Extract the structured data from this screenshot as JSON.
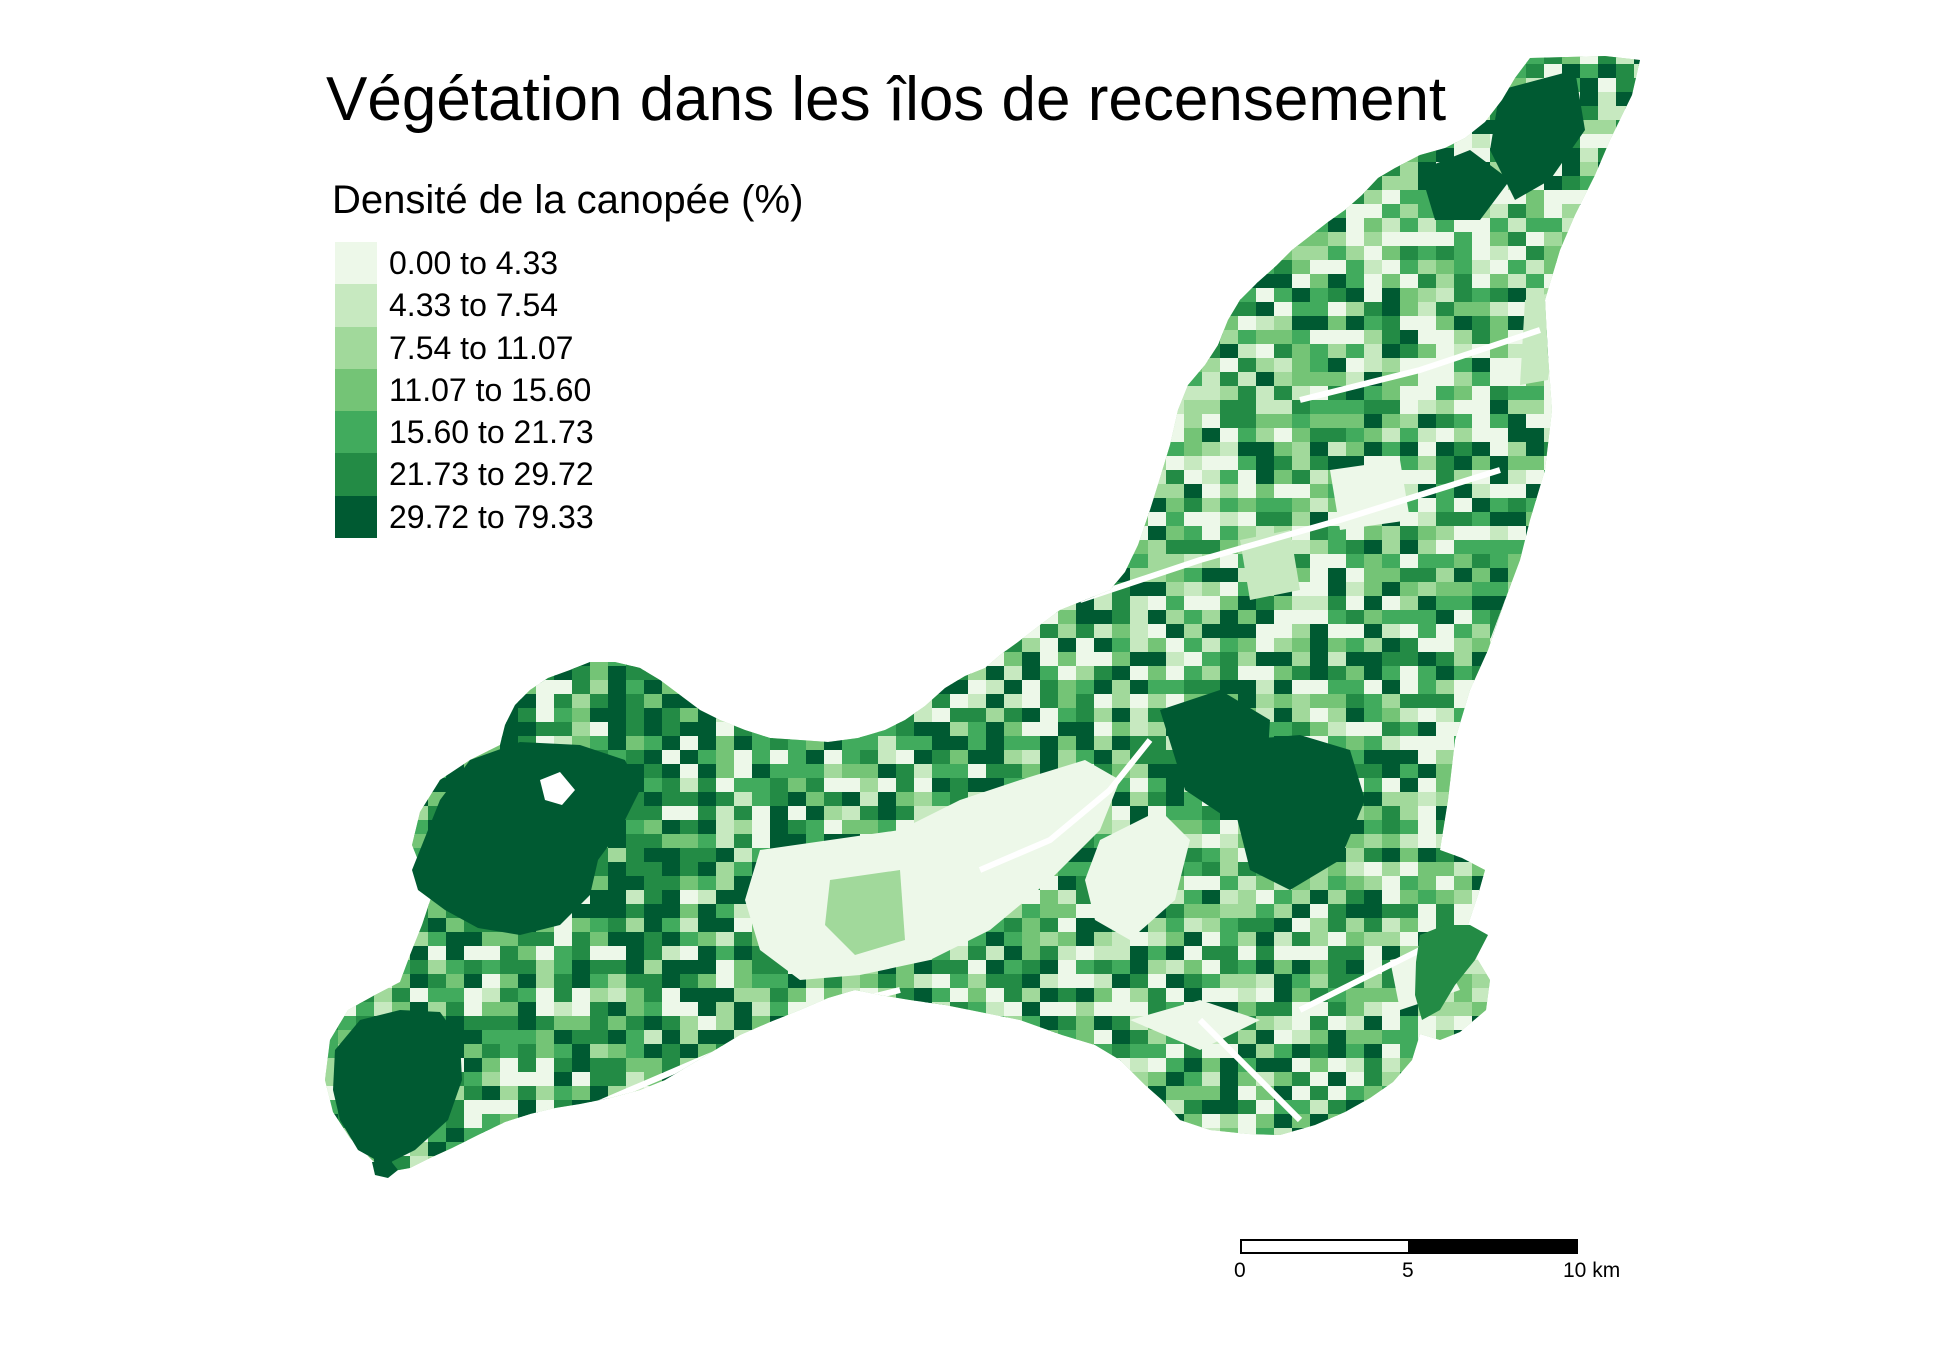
{
  "title": "Végétation dans les îlos de recensement",
  "legend": {
    "title": "Densité de la canopée (%)",
    "classes": [
      {
        "label": "0.00 to 4.33",
        "color": "#edf8e9"
      },
      {
        "label": "4.33 to 7.54",
        "color": "#c7e9c0"
      },
      {
        "label": "7.54 to 11.07",
        "color": "#a1d99b"
      },
      {
        "label": "11.07 to 15.60",
        "color": "#74c476"
      },
      {
        "label": "15.60 to 21.73",
        "color": "#41ab5d"
      },
      {
        "label": "21.73 to 29.72",
        "color": "#238b45"
      },
      {
        "label": "29.72 to 79.33",
        "color": "#005a32"
      }
    ]
  },
  "scalebar": {
    "ticks": [
      "0",
      "5",
      "10 km"
    ],
    "max_km": 10
  }
}
